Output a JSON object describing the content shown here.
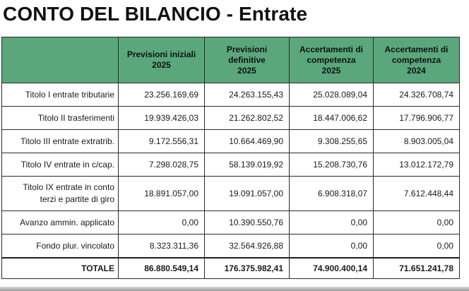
{
  "title": "CONTO DEL BILANCIO - Entrate",
  "header_color": "#5aa77c",
  "columns": [
    {
      "label": ""
    },
    {
      "label": "Previsioni iniziali\n2025"
    },
    {
      "label": "Previsioni\ndefinitive\n2025"
    },
    {
      "label": "Accertamenti di\ncompetenza\n2025"
    },
    {
      "label": "Accertamenti di\ncompetenza\n2024"
    }
  ],
  "rows": [
    {
      "label": "Titolo I entrate tributarie",
      "v": [
        "23.256.169,69",
        "24.263.155,43",
        "25.028.089,04",
        "24.326.708,74"
      ]
    },
    {
      "label": "Titolo II trasferimenti",
      "v": [
        "19.939.426,03",
        "21.262.802,52",
        "18.447.006,62",
        "17.796.906,77"
      ]
    },
    {
      "label": "Titolo III entrate extratrib.",
      "v": [
        "9.172.556,31",
        "10.664.469,90",
        "9.308.255,65",
        "8.903.005,04"
      ]
    },
    {
      "label": "Titolo IV entrate in c/cap.",
      "v": [
        "7.298.028,75",
        "58.139.019,92",
        "15.208.730,76",
        "13.012.172,79"
      ]
    },
    {
      "label": "Titolo IX entrate in conto\nterzi e partite di giro",
      "v": [
        "18.891.057,00",
        "19.091.057,00",
        "6.908.318,07",
        "7.612.448,44"
      ]
    },
    {
      "label": "Avanzo ammin. applicato",
      "v": [
        "0,00",
        "10.390.550,76",
        "0,00",
        "0,00"
      ]
    },
    {
      "label": "Fondo plur. vincolato",
      "v": [
        "8.323.311,36",
        "32.564.926,88",
        "0,00",
        "0,00"
      ]
    }
  ],
  "total": {
    "label": "TOTALE",
    "v": [
      "86.880.549,14",
      "176.375.982,41",
      "74.900.400,14",
      "71.651.241,78"
    ]
  }
}
